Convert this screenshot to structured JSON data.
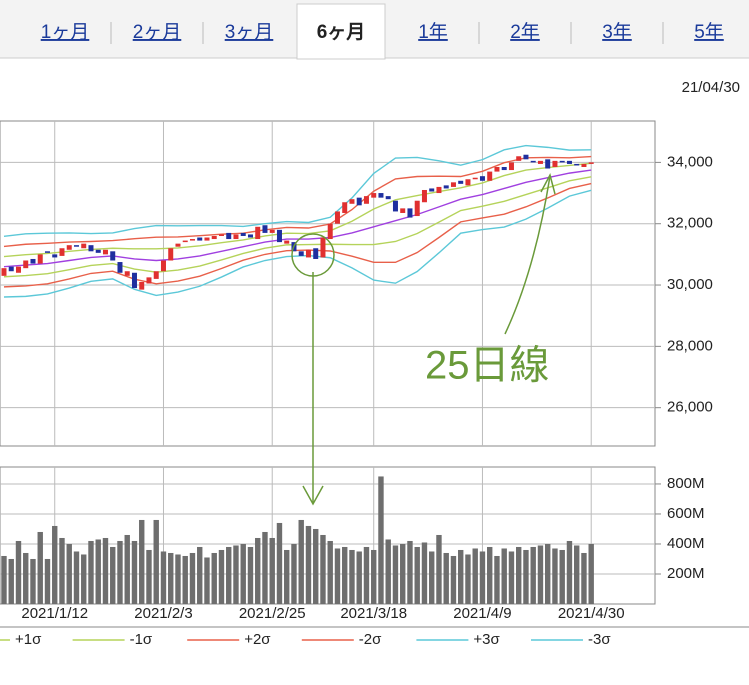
{
  "tabs": [
    "1ヶ月",
    "2ヶ月",
    "3ヶ月",
    "6ヶ月",
    "1年",
    "2年",
    "3年",
    "5年"
  ],
  "selected_tab": 3,
  "date": "21/04/30",
  "chart_data": [
    {
      "type": "candlestick",
      "annotation": "25日線",
      "up_color": "#e03030",
      "down_color": "#1f2f9f",
      "grid": true,
      "xlim": [
        -0.55,
        89.8
      ],
      "ylim": [
        24750,
        35350
      ],
      "yticks": [
        {
          "value": 26000,
          "label": "26,000"
        },
        {
          "value": 28000,
          "label": "28,000"
        },
        {
          "value": 30000,
          "label": "30,000"
        },
        {
          "value": 32000,
          "label": "32,000"
        },
        {
          "value": 34000,
          "label": "34,000"
        }
      ],
      "x": [
        0,
        1,
        2,
        3,
        4,
        5,
        6,
        7,
        8,
        9,
        10,
        11,
        12,
        13,
        14,
        15,
        16,
        17,
        18,
        19,
        20,
        21,
        22,
        23,
        24,
        25,
        26,
        27,
        28,
        29,
        30,
        31,
        32,
        33,
        34,
        35,
        36,
        37,
        38,
        39,
        40,
        41,
        42,
        43,
        44,
        45,
        46,
        47,
        48,
        49,
        50,
        51,
        52,
        53,
        54,
        55,
        56,
        57,
        58,
        59,
        60,
        61,
        62,
        63,
        64,
        65,
        66,
        67,
        68,
        69,
        70,
        71,
        72,
        73,
        74,
        75,
        76,
        77,
        78,
        79,
        80,
        81
      ],
      "open": [
        30300,
        30600,
        30400,
        30550,
        30850,
        30700,
        31100,
        31000,
        30950,
        31150,
        31300,
        31200,
        31300,
        31150,
        31000,
        31100,
        30750,
        30300,
        30400,
        29850,
        30050,
        30200,
        30450,
        30800,
        31250,
        31400,
        31450,
        31550,
        31450,
        31500,
        31600,
        31700,
        31500,
        31700,
        31650,
        31500,
        31950,
        31700,
        31800,
        31350,
        31400,
        31100,
        30900,
        31200,
        30900,
        31500,
        32000,
        32350,
        32650,
        32850,
        32650,
        32850,
        33000,
        32900,
        32750,
        32350,
        32500,
        32250,
        32700,
        33150,
        33000,
        33250,
        33200,
        33400,
        33250,
        33450,
        33550,
        33400,
        33700,
        33850,
        33750,
        34050,
        34250,
        34050,
        33950,
        34100,
        33850,
        34050,
        34050,
        33950,
        33850,
        33950
      ],
      "close": [
        30550,
        30450,
        30600,
        30800,
        30700,
        31000,
        31050,
        30900,
        31200,
        31300,
        31250,
        31350,
        31100,
        31050,
        31150,
        30800,
        30400,
        30450,
        29900,
        30100,
        30250,
        30450,
        30800,
        31200,
        31350,
        31450,
        31500,
        31450,
        31550,
        31600,
        31650,
        31500,
        31650,
        31600,
        31550,
        31900,
        31700,
        31800,
        31400,
        31450,
        31100,
        30950,
        31150,
        30850,
        31550,
        32000,
        32400,
        32700,
        32800,
        32600,
        32900,
        33000,
        32850,
        32800,
        32400,
        32500,
        32200,
        32750,
        33100,
        33050,
        33200,
        33150,
        33350,
        33300,
        33450,
        33500,
        33400,
        33700,
        33850,
        33750,
        34000,
        34200,
        34100,
        34000,
        34050,
        33800,
        34050,
        34000,
        33950,
        33900,
        33950,
        34000
      ],
      "series": [
        {
          "color": "#a040e0",
          "x": [
            0,
            3,
            6,
            9,
            12,
            15,
            18,
            21,
            24,
            27,
            30,
            33,
            36,
            39,
            42,
            45,
            48,
            51,
            54,
            57,
            60,
            63,
            66,
            69,
            72,
            75,
            78,
            81
          ],
          "values": [
            30600,
            30650,
            30700,
            30800,
            30900,
            30950,
            30850,
            30800,
            30850,
            30950,
            31100,
            31250,
            31400,
            31500,
            31500,
            31550,
            31700,
            31900,
            32100,
            32300,
            32550,
            32800,
            32950,
            33150,
            33350,
            33500,
            33650,
            33750
          ]
        },
        {
          "name": "+1σ",
          "color": "#b5d35a",
          "x": [
            0,
            3,
            6,
            9,
            12,
            15,
            18,
            21,
            24,
            27,
            30,
            33,
            36,
            39,
            42,
            45,
            48,
            51,
            54,
            57,
            60,
            63,
            66,
            69,
            72,
            75,
            78,
            81
          ],
          "values": [
            30930,
            30990,
            31030,
            31100,
            31160,
            31200,
            31180,
            31180,
            31210,
            31280,
            31380,
            31470,
            31600,
            31690,
            31680,
            31770,
            32080,
            32480,
            32780,
            32920,
            33050,
            33170,
            33330,
            33570,
            33750,
            33830,
            33900,
            33970
          ]
        },
        {
          "name": "-1σ",
          "color": "#b5d35a",
          "x": [
            0,
            3,
            6,
            9,
            12,
            15,
            18,
            21,
            24,
            27,
            30,
            33,
            36,
            39,
            42,
            45,
            48,
            51,
            54,
            57,
            60,
            63,
            66,
            69,
            72,
            75,
            78,
            81
          ],
          "values": [
            30270,
            30310,
            30370,
            30500,
            30640,
            30700,
            30520,
            30420,
            30490,
            30620,
            30820,
            31030,
            31200,
            31310,
            31320,
            31330,
            31320,
            31320,
            31420,
            31680,
            32050,
            32430,
            32570,
            32730,
            32950,
            33170,
            33400,
            33530
          ]
        },
        {
          "name": "+2σ",
          "color": "#e8604a",
          "x": [
            0,
            3,
            6,
            9,
            12,
            15,
            18,
            21,
            24,
            27,
            30,
            33,
            36,
            39,
            42,
            45,
            48,
            51,
            54,
            57,
            60,
            63,
            66,
            69,
            72,
            75,
            78,
            81
          ],
          "values": [
            31260,
            31330,
            31360,
            31400,
            31420,
            31450,
            31510,
            31560,
            31570,
            31610,
            31660,
            31690,
            31800,
            31880,
            31860,
            31990,
            32460,
            33060,
            33460,
            33540,
            33550,
            33540,
            33710,
            33990,
            34150,
            34160,
            34150,
            34190
          ]
        },
        {
          "name": "-2σ",
          "color": "#e8604a",
          "x": [
            0,
            3,
            6,
            9,
            12,
            15,
            18,
            21,
            24,
            27,
            30,
            33,
            36,
            39,
            42,
            45,
            48,
            51,
            54,
            57,
            60,
            63,
            66,
            69,
            72,
            75,
            78,
            81
          ],
          "values": [
            29940,
            29970,
            30040,
            30200,
            30380,
            30450,
            30190,
            30040,
            30130,
            30290,
            30540,
            30810,
            31000,
            31120,
            31140,
            31110,
            30940,
            30740,
            30740,
            31060,
            31550,
            32060,
            32190,
            32310,
            32550,
            32840,
            33150,
            33310
          ]
        },
        {
          "name": "+3σ",
          "color": "#5cc8d8",
          "x": [
            0,
            3,
            6,
            9,
            12,
            15,
            18,
            21,
            24,
            27,
            30,
            33,
            36,
            39,
            42,
            45,
            48,
            51,
            54,
            57,
            60,
            63,
            66,
            69,
            72,
            75,
            78,
            81
          ],
          "values": [
            31590,
            31670,
            31690,
            31700,
            31680,
            31700,
            31840,
            31940,
            31930,
            31940,
            31940,
            31910,
            32000,
            32070,
            32040,
            32210,
            32840,
            33640,
            34140,
            34160,
            34050,
            33910,
            34090,
            34410,
            34550,
            34490,
            34400,
            34410
          ]
        },
        {
          "name": "-3σ",
          "color": "#5cc8d8",
          "x": [
            0,
            3,
            6,
            9,
            12,
            15,
            18,
            21,
            24,
            27,
            30,
            33,
            36,
            39,
            42,
            45,
            48,
            51,
            54,
            57,
            60,
            63,
            66,
            69,
            72,
            75,
            78,
            81
          ],
          "values": [
            29610,
            29630,
            29710,
            29900,
            30120,
            30200,
            29860,
            29660,
            29770,
            29960,
            30260,
            30590,
            30800,
            30930,
            30960,
            30890,
            30560,
            30160,
            30060,
            30440,
            31050,
            31690,
            31810,
            31890,
            32150,
            32510,
            32900,
            33090
          ]
        }
      ]
    },
    {
      "type": "bar",
      "color": "#6e6e6e",
      "grid": true,
      "xlim": [
        -0.55,
        89.8
      ],
      "ylim": [
        0,
        913
      ],
      "yticks": [
        {
          "value": 200,
          "label": "200M"
        },
        {
          "value": 400,
          "label": "400M"
        },
        {
          "value": 600,
          "label": "600M"
        },
        {
          "value": 800,
          "label": "800M"
        }
      ],
      "xticks": [
        {
          "value": 7,
          "label": "2021/1/12"
        },
        {
          "value": 22,
          "label": "2021/2/3"
        },
        {
          "value": 37,
          "label": "2021/2/25"
        },
        {
          "value": 51,
          "label": "2021/3/18"
        },
        {
          "value": 66,
          "label": "2021/4/9"
        },
        {
          "value": 81,
          "label": "2021/4/30"
        }
      ],
      "x": [
        0,
        1,
        2,
        3,
        4,
        5,
        6,
        7,
        8,
        9,
        10,
        11,
        12,
        13,
        14,
        15,
        16,
        17,
        18,
        19,
        20,
        21,
        22,
        23,
        24,
        25,
        26,
        27,
        28,
        29,
        30,
        31,
        32,
        33,
        34,
        35,
        36,
        37,
        38,
        39,
        40,
        41,
        42,
        43,
        44,
        45,
        46,
        47,
        48,
        49,
        50,
        51,
        52,
        53,
        54,
        55,
        56,
        57,
        58,
        59,
        60,
        61,
        62,
        63,
        64,
        65,
        66,
        67,
        68,
        69,
        70,
        71,
        72,
        73,
        74,
        75,
        76,
        77,
        78,
        79,
        80,
        81
      ],
      "values": [
        320,
        300,
        420,
        340,
        300,
        480,
        300,
        520,
        440,
        400,
        350,
        330,
        420,
        430,
        440,
        380,
        420,
        460,
        420,
        560,
        360,
        560,
        350,
        340,
        330,
        320,
        340,
        380,
        310,
        340,
        360,
        380,
        390,
        400,
        380,
        440,
        480,
        440,
        540,
        360,
        400,
        560,
        520,
        500,
        460,
        420,
        370,
        380,
        360,
        350,
        380,
        360,
        850,
        430,
        390,
        400,
        420,
        380,
        410,
        350,
        460,
        340,
        320,
        360,
        330,
        370,
        350,
        380,
        320,
        370,
        350,
        380,
        360,
        380,
        390,
        400,
        370,
        360,
        420,
        390,
        340,
        400
      ]
    }
  ]
}
